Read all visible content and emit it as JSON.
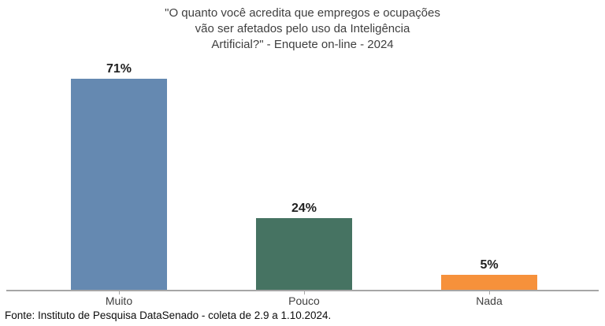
{
  "chart_data": {
    "type": "bar",
    "title": "\"O quanto você acredita que empregos e ocupações vão ser afetados pelo uso da Inteligência Artificial?\" - Enquete on-line - 2024",
    "title_lines": [
      "\"O quanto você acredita que empregos e ocupações",
      "vão ser afetados pelo uso da Inteligência",
      "Artificial?\" - Enquete on-line - 2024"
    ],
    "categories": [
      "Muito",
      "Pouco",
      "Nada"
    ],
    "values": [
      71,
      24,
      5
    ],
    "value_labels": [
      "71%",
      "24%",
      "5%"
    ],
    "colors": [
      "#6589b1",
      "#467362",
      "#f6913b"
    ],
    "ylim": [
      0,
      100
    ],
    "grid": false,
    "legend": "none",
    "axis_line_color": "#a6a6a6",
    "source": "Fonte: Instituto de Pesquisa DataSenado - coleta de 2.9 a 1.10.2024."
  }
}
